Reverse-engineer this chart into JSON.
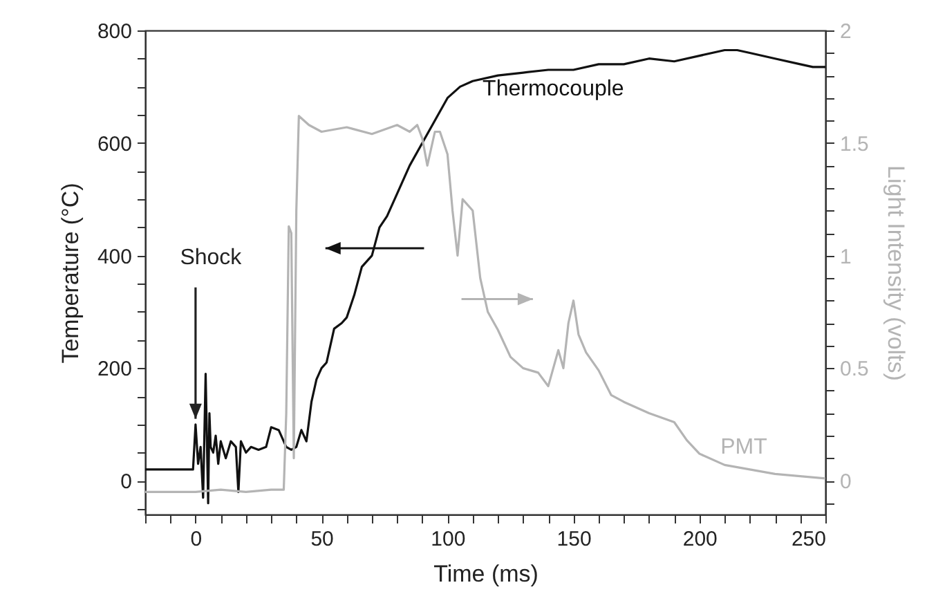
{
  "chart_data": {
    "type": "line",
    "xlabel": "Time (ms)",
    "ylabel": "Temperature (°C)",
    "y2label": "Light Intensity (volts)",
    "xlim": [
      -20,
      250
    ],
    "xticks": [
      {
        "value": -20,
        "label": null
      },
      {
        "value": -10,
        "label": null
      },
      0,
      {
        "value": 10,
        "label": null
      },
      {
        "value": 20,
        "label": null
      },
      {
        "value": 30,
        "label": null
      },
      {
        "value": 40,
        "label": null
      },
      50,
      {
        "value": 60,
        "label": null
      },
      {
        "value": 70,
        "label": null
      },
      {
        "value": 80,
        "label": null
      },
      {
        "value": 90,
        "label": null
      },
      100,
      {
        "value": 110,
        "label": null
      },
      {
        "value": 120,
        "label": null
      },
      {
        "value": 130,
        "label": null
      },
      {
        "value": 140,
        "label": null
      },
      150,
      {
        "value": 160,
        "label": null
      },
      {
        "value": 170,
        "label": null
      },
      {
        "value": 180,
        "label": null
      },
      {
        "value": 190,
        "label": null
      },
      200,
      {
        "value": 210,
        "label": null
      },
      {
        "value": 220,
        "label": null
      },
      {
        "value": 230,
        "label": null
      },
      {
        "value": 240,
        "label": null
      },
      250
    ],
    "ylim": [
      -60,
      800
    ],
    "yticks": [
      {
        "value": -50,
        "label": null
      },
      0,
      {
        "value": 50,
        "label": null
      },
      {
        "value": 100,
        "label": null
      },
      {
        "value": 150,
        "label": null
      },
      200,
      {
        "value": 250,
        "label": null
      },
      {
        "value": 300,
        "label": null
      },
      {
        "value": 350,
        "label": null
      },
      400,
      {
        "value": 450,
        "label": null
      },
      {
        "value": 500,
        "label": null
      },
      {
        "value": 550,
        "label": null
      },
      600,
      {
        "value": 650,
        "label": null
      },
      {
        "value": 700,
        "label": null
      },
      {
        "value": 750,
        "label": null
      },
      800
    ],
    "y2lim": [
      -0.15,
      2
    ],
    "y2ticks": [
      {
        "value": -0.1,
        "label": null
      },
      0,
      {
        "value": 0.1,
        "label": null
      },
      {
        "value": 0.2,
        "label": null
      },
      {
        "value": 0.3,
        "label": null
      },
      {
        "value": 0.4,
        "label": null
      },
      0.5,
      {
        "value": 0.6,
        "label": null
      },
      {
        "value": 0.7,
        "label": null
      },
      {
        "value": 0.8,
        "label": null
      },
      {
        "value": 0.9,
        "label": null
      },
      1,
      {
        "value": 1.1,
        "label": null
      },
      {
        "value": 1.2,
        "label": null
      },
      {
        "value": 1.3,
        "label": null
      },
      {
        "value": 1.4,
        "label": null
      },
      1.5,
      {
        "value": 1.6,
        "label": null
      },
      {
        "value": 1.7,
        "label": null
      },
      {
        "value": 1.8,
        "label": null
      },
      {
        "value": 1.9,
        "label": null
      },
      2
    ],
    "annotations": [
      {
        "text": "Shock",
        "x": 0,
        "y": 110
      }
    ],
    "series": [
      {
        "name": "Thermocouple",
        "color": "#111111",
        "x": [
          -20,
          -10,
          -1,
          0,
          1,
          2,
          3,
          4,
          5,
          5.5,
          6,
          7,
          8,
          9,
          10,
          12,
          14,
          16,
          17,
          18,
          20,
          22,
          25,
          28,
          30,
          33,
          36,
          38,
          40,
          42,
          44,
          46,
          48,
          50,
          52,
          55,
          58,
          60,
          63,
          66,
          70,
          73,
          76,
          80,
          85,
          90,
          95,
          100,
          105,
          110,
          120,
          130,
          140,
          150,
          160,
          170,
          180,
          190,
          200,
          210,
          215,
          220,
          230,
          240,
          245,
          250
        ],
        "values": [
          20,
          20,
          20,
          100,
          30,
          60,
          -30,
          190,
          -40,
          120,
          60,
          50,
          80,
          30,
          70,
          40,
          70,
          60,
          -20,
          70,
          50,
          60,
          55,
          60,
          95,
          90,
          60,
          55,
          60,
          90,
          70,
          140,
          180,
          200,
          210,
          270,
          280,
          290,
          330,
          380,
          400,
          450,
          470,
          510,
          560,
          600,
          640,
          680,
          700,
          710,
          720,
          725,
          730,
          730,
          740,
          740,
          750,
          745,
          755,
          765,
          765,
          760,
          750,
          740,
          735,
          735
        ]
      },
      {
        "name": "PMT",
        "color": "#b4b4b4",
        "axis": "y2",
        "x": [
          -20,
          0,
          10,
          20,
          30,
          35,
          36,
          37,
          38,
          39,
          40,
          41,
          45,
          50,
          60,
          70,
          80,
          85,
          88,
          90,
          92,
          95,
          97,
          100,
          102,
          104,
          106,
          110,
          113,
          116,
          120,
          125,
          130,
          136,
          140,
          144,
          146,
          148,
          150,
          152,
          155,
          160,
          165,
          170,
          180,
          190,
          195,
          200,
          210,
          220,
          230,
          240,
          250
        ],
        "values": [
          -0.05,
          -0.05,
          -0.04,
          -0.05,
          -0.04,
          -0.04,
          0.3,
          1.13,
          1.1,
          0.1,
          1.2,
          1.62,
          1.58,
          1.55,
          1.57,
          1.54,
          1.58,
          1.55,
          1.58,
          1.52,
          1.4,
          1.55,
          1.55,
          1.45,
          1.2,
          1.0,
          1.25,
          1.2,
          0.9,
          0.75,
          0.67,
          0.55,
          0.5,
          0.48,
          0.42,
          0.58,
          0.5,
          0.7,
          0.8,
          0.65,
          0.57,
          0.49,
          0.38,
          0.35,
          0.3,
          0.26,
          0.18,
          0.12,
          0.07,
          0.05,
          0.03,
          0.02,
          0.01
        ]
      }
    ]
  }
}
